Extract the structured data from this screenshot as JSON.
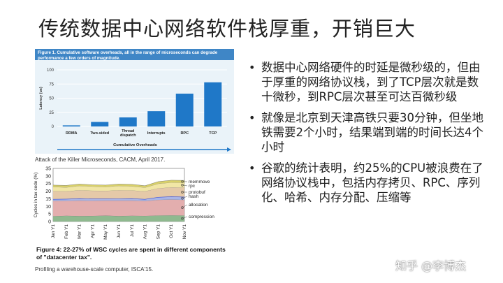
{
  "slide": {
    "title": "传统数据中心网络软件栈厚重，开销巨大",
    "bullets": [
      "数据中心网络硬件的时延是微秒级的，但由于厚重的网络协议栈，到了TCP层次就是数十微秒，到RPC层次甚至可达百微秒级",
      "就像是北京到天津高铁只要30分钟，但坐地铁需要2个小时，结果端到端的时间长达4个小时",
      "谷歌的统计表明，约25%的CPU被浪费在了网络协议栈中，包括内存拷贝、RPC、序列化、哈希、内存分配、压缩等"
    ],
    "watermark": "知乎 @李博杰"
  },
  "figures": {
    "fig1_caption": "Attack of the Killer Microseconds, CACM, April 2017.",
    "fig4_caption": "Figure 4: 22-27% of WSC cycles are spent in different components of \"datacenter tax\".",
    "fig4_source": "Profiling a warehouse-scale computer, ISCA'15."
  },
  "chart_data": [
    {
      "type": "bar",
      "title": "Figure 1. Cumulative software overheads, all in the range of microseconds can degrade performance a few orders of magnitude.",
      "categories": [
        "RDMA",
        "Two-sided",
        "Thread dispatch",
        "Interrupts",
        "RPC",
        "TCP"
      ],
      "values": [
        2,
        8,
        16,
        27,
        58,
        78
      ],
      "ylabel": "Latency (us)",
      "xlabel": "Cumulative Overheads",
      "ylim": [
        0,
        100
      ],
      "yticks": [
        0,
        25,
        50,
        75,
        100
      ],
      "bar_color": "#1f78c8"
    },
    {
      "type": "area",
      "ylabel": "Cycles in tax code (%)",
      "ylim": [
        0,
        35
      ],
      "yticks": [
        0,
        5,
        10,
        15,
        20,
        25,
        30,
        35
      ],
      "x": [
        "Jan Y1",
        "Feb Y1",
        "Mar Y1",
        "Apr Y1",
        "May Y1",
        "Jun Y1",
        "Jul Y1",
        "Aug Y1",
        "Sep Y1",
        "Oct Y1",
        "Nov Y1"
      ],
      "series": [
        {
          "name": "compression",
          "color": "#8fb98f",
          "values": [
            3.5,
            3.8,
            3.6,
            3.7,
            3.9,
            3.6,
            3.8,
            3.7,
            4.0,
            4.1,
            4.0
          ]
        },
        {
          "name": "allocation",
          "color": "#e3aeae",
          "values": [
            10.0,
            9.8,
            10.2,
            10.0,
            9.9,
            10.2,
            10.0,
            9.8,
            10.3,
            10.4,
            10.3
          ]
        },
        {
          "name": "hash",
          "color": "#a9b4e6",
          "values": [
            1.3,
            1.3,
            1.4,
            1.3,
            1.2,
            1.3,
            1.4,
            1.3,
            1.8,
            2.0,
            2.0
          ]
        },
        {
          "name": "protobuf",
          "color": "#e5c9a8",
          "values": [
            5.2,
            5.0,
            5.4,
            5.3,
            5.2,
            5.5,
            5.3,
            5.1,
            5.8,
            6.0,
            6.1
          ]
        },
        {
          "name": "rpc",
          "color": "#f1e6a5",
          "values": [
            2.8,
            2.6,
            2.9,
            2.8,
            2.6,
            2.9,
            2.7,
            2.5,
            3.0,
            3.2,
            3.2
          ]
        },
        {
          "name": "memmove",
          "color": "#d8d06a",
          "values": [
            1.2,
            1.3,
            1.2,
            1.1,
            1.2,
            1.2,
            1.3,
            1.2,
            1.4,
            1.5,
            1.5
          ]
        }
      ]
    }
  ]
}
